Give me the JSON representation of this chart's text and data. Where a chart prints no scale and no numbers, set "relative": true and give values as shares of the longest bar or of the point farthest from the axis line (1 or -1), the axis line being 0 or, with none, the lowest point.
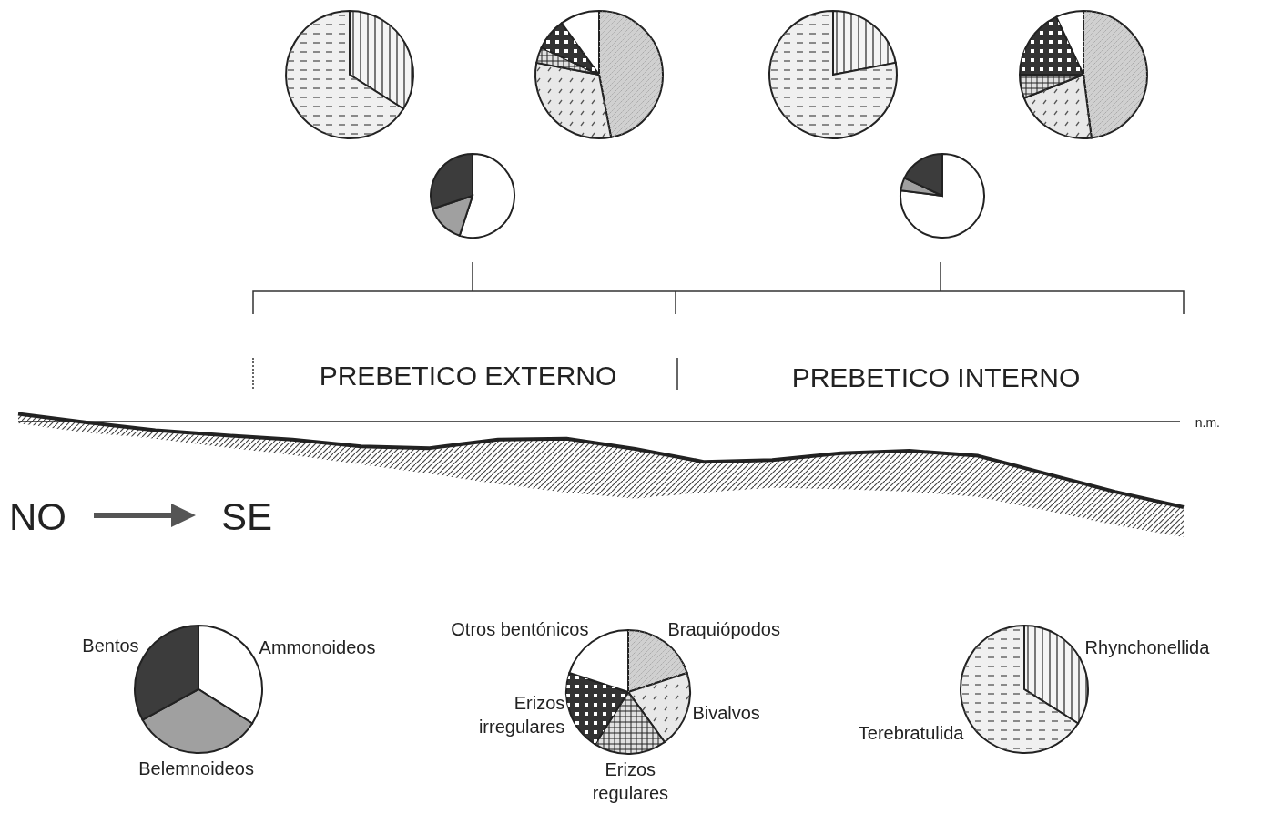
{
  "chart_data": [
    {
      "type": "pie",
      "categories": [
        null,
        null,
        null
      ],
      "values": [
        55,
        15,
        30
      ],
      "colors": [
        "#ffffff",
        "#a0a0a0",
        "#3c3c3c"
      ]
    },
    {
      "type": "pie",
      "categories": [
        null,
        null
      ],
      "values": [
        34,
        66
      ],
      "colors": [
        "#f4f4f4",
        "#f0f0f0"
      ]
    },
    {
      "type": "pie",
      "categories": [
        null,
        null,
        null,
        null,
        null
      ],
      "values": [
        47,
        31,
        4,
        8,
        10
      ],
      "colors": [
        "#d0d0d0",
        "#e8e8e8",
        "#e0e0e0",
        "#333333",
        "#ffffff"
      ]
    },
    {
      "type": "pie",
      "categories": [
        null,
        null,
        null
      ],
      "values": [
        77,
        5,
        18
      ],
      "colors": [
        "#ffffff",
        "#a0a0a0",
        "#3c3c3c"
      ]
    },
    {
      "type": "pie",
      "categories": [
        null,
        null
      ],
      "values": [
        22,
        78
      ],
      "colors": [
        "#f4f4f4",
        "#f0f0f0"
      ]
    },
    {
      "type": "pie",
      "categories": [
        null,
        null,
        null,
        null,
        null
      ],
      "values": [
        48,
        21,
        6,
        18,
        7
      ],
      "colors": [
        "#d0d0d0",
        "#e8e8e8",
        "#e0e0e0",
        "#333333",
        "#ffffff"
      ]
    },
    {
      "type": "line",
      "relative": true,
      "categories": [
        null,
        null,
        null,
        null,
        null,
        null,
        null,
        null,
        null,
        null,
        null,
        null,
        null,
        null,
        null,
        null,
        null,
        null
      ],
      "color": "#222222",
      "values": [
        0.09,
        -0.01,
        -0.1,
        -0.16,
        -0.21,
        -0.29,
        -0.31,
        -0.21,
        -0.2,
        -0.32,
        -0.47,
        -0.45,
        -0.37,
        -0.34,
        -0.4,
        -0.61,
        -0.82,
        -1
      ],
      "lower": [
        -0.02,
        -0.13,
        -0.2,
        -0.3,
        -0.39,
        -0.5,
        -0.61,
        -0.73,
        -0.83,
        -0.9,
        -0.83,
        -0.77,
        -0.79,
        -0.82,
        -0.88,
        -1.04,
        -1.21,
        -1.35
      ],
      "upper": [
        0.09,
        -0.01,
        -0.1,
        -0.16,
        -0.21,
        -0.29,
        -0.31,
        -0.21,
        -0.2,
        -0.32,
        -0.47,
        -0.45,
        -0.37,
        -0.34,
        -0.4,
        -0.61,
        -0.82,
        -1
      ],
      "ref_lines": [
        {
          "axis": "y",
          "value": 0,
          "label": "n.m."
        }
      ],
      "annotations": [
        "PREBETICO EXTERNO",
        "PREBETICO INTERNO",
        "NO",
        "SE"
      ]
    },
    {
      "type": "pie",
      "categories": [
        "Ammonoideos",
        "Belemnoideos",
        "Bentos"
      ],
      "values": [
        34,
        33,
        33
      ],
      "colors": [
        "#ffffff",
        "#a0a0a0",
        "#3c3c3c"
      ]
    },
    {
      "type": "pie",
      "categories": [
        "Braquiópodos",
        "Bivalvos",
        "Erizos regulares",
        "Erizos irregulares",
        "Otros bentónicos"
      ],
      "values": [
        20,
        20,
        19,
        21,
        20
      ],
      "colors": [
        "#d0d0d0",
        "#e8e8e8",
        "#e0e0e0",
        "#333333",
        "#ffffff"
      ]
    },
    {
      "type": "pie",
      "categories": [
        "Rhynchonellida",
        "Terebratulida"
      ],
      "values": [
        34,
        66
      ],
      "colors": [
        "#f4f4f4",
        "#f0f0f0"
      ]
    }
  ]
}
